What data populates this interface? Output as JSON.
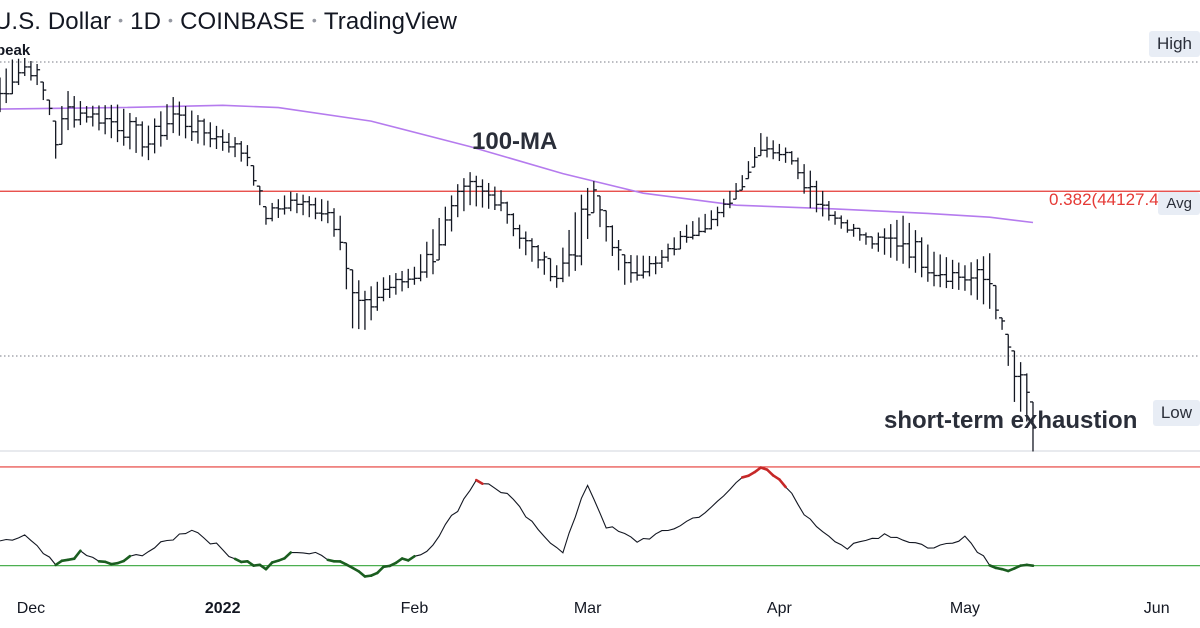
{
  "header": {
    "title_parts": [
      "U.S. Dollar",
      "1D",
      "COINBASE",
      "TradingView"
    ],
    "subtitle": "peak"
  },
  "price_tags": {
    "high": "High",
    "avg": "Avg",
    "low": "Low"
  },
  "annotations": {
    "ma": "100-MA",
    "fib": "0.382(44127.4",
    "exhaustion": "short-term exhaustion"
  },
  "colors": {
    "candle": "#131722",
    "ma_line": "#b57bee",
    "fib_line": "#e53935",
    "fib_text": "#e53935",
    "rsi_line": "#131722",
    "rsi_overbought": "#e53935",
    "rsi_oversold": "#4caf50",
    "rsi_extreme_high": "#c62828",
    "rsi_extreme_low": "#1b5e20",
    "dotted": "#787b86"
  },
  "chart_data": {
    "type": "ohlc",
    "x_axis": {
      "tick_labels": [
        "Dec",
        "2022",
        "Feb",
        "Mar",
        "Apr",
        "May",
        "Jun"
      ],
      "tick_dates": [
        "2021-12-01",
        "2022-01-01",
        "2022-02-01",
        "2022-03-01",
        "2022-04-01",
        "2022-05-01",
        "2022-06-01"
      ],
      "range": [
        "2021-11-26",
        "2022-06-08"
      ]
    },
    "y_range": [
      26500,
      53000
    ],
    "fib_level": {
      "label": "0.382(44127.4",
      "value": 44127.4
    },
    "ma_100": {
      "label": "100-MA",
      "points": [
        [
          "2021-11-26",
          49600
        ],
        [
          "2021-12-15",
          49700
        ],
        [
          "2022-01-01",
          49850
        ],
        [
          "2022-01-10",
          49700
        ],
        [
          "2022-01-25",
          48800
        ],
        [
          "2022-02-10",
          47100
        ],
        [
          "2022-02-25",
          45300
        ],
        [
          "2022-03-10",
          44000
        ],
        [
          "2022-03-25",
          43200
        ],
        [
          "2022-04-10",
          42950
        ],
        [
          "2022-04-25",
          42650
        ],
        [
          "2022-05-05",
          42400
        ],
        [
          "2022-05-12",
          42050
        ]
      ]
    },
    "ohlc_keypoints": [
      [
        "2021-11-26",
        49400,
        51700
      ],
      [
        "2021-11-28",
        50600,
        52900
      ],
      [
        "2021-11-30",
        51800,
        53000
      ],
      [
        "2021-12-02",
        51200,
        52600
      ],
      [
        "2021-12-04",
        49200,
        50200
      ],
      [
        "2021-12-05",
        46300,
        48800
      ],
      [
        "2021-12-07",
        48200,
        50800
      ],
      [
        "2021-12-10",
        48700,
        49800
      ],
      [
        "2021-12-15",
        47400,
        49900
      ],
      [
        "2021-12-20",
        46200,
        48500
      ],
      [
        "2021-12-24",
        48000,
        50400
      ],
      [
        "2021-12-28",
        47300,
        49200
      ],
      [
        "2022-01-02",
        46700,
        48000
      ],
      [
        "2022-01-05",
        45800,
        47200
      ],
      [
        "2022-01-08",
        41900,
        43100
      ],
      [
        "2022-01-12",
        42800,
        44100
      ],
      [
        "2022-01-18",
        42000,
        43500
      ],
      [
        "2022-01-20",
        40200,
        42500
      ],
      [
        "2022-01-22",
        35000,
        38900
      ],
      [
        "2022-01-24",
        34900,
        37500
      ],
      [
        "2022-01-27",
        36800,
        38400
      ],
      [
        "2022-02-01",
        37900,
        39100
      ],
      [
        "2022-02-04",
        38600,
        41600
      ],
      [
        "2022-02-08",
        42400,
        44600
      ],
      [
        "2022-02-10",
        43200,
        45400
      ],
      [
        "2022-02-15",
        42800,
        44200
      ],
      [
        "2022-02-18",
        40300,
        41900
      ],
      [
        "2022-02-24",
        37700,
        39200
      ],
      [
        "2022-02-28",
        39200,
        43900
      ],
      [
        "2022-03-02",
        42700,
        44800
      ],
      [
        "2022-03-07",
        37900,
        39900
      ],
      [
        "2022-03-12",
        38600,
        39800
      ],
      [
        "2022-03-17",
        40700,
        41900
      ],
      [
        "2022-03-22",
        41800,
        43100
      ],
      [
        "2022-03-26",
        44200,
        45200
      ],
      [
        "2022-03-29",
        46500,
        48000
      ],
      [
        "2022-04-03",
        45900,
        46800
      ],
      [
        "2022-04-06",
        43000,
        45500
      ],
      [
        "2022-04-10",
        41900,
        42800
      ],
      [
        "2022-04-16",
        40300,
        41100
      ],
      [
        "2022-04-21",
        39300,
        42500
      ],
      [
        "2022-04-26",
        37800,
        40100
      ],
      [
        "2022-05-01",
        37500,
        39200
      ],
      [
        "2022-05-05",
        36300,
        40000
      ],
      [
        "2022-05-07",
        34900,
        35700
      ],
      [
        "2022-05-09",
        30100,
        33500
      ],
      [
        "2022-05-11",
        28800,
        32000
      ],
      [
        "2022-05-12",
        26800,
        30100
      ]
    ],
    "rsi": {
      "overbought": 70,
      "oversold": 30,
      "y_range": [
        25,
        72
      ],
      "points": [
        [
          "2021-11-26",
          39
        ],
        [
          "2021-11-30",
          42
        ],
        [
          "2021-12-05",
          30
        ],
        [
          "2021-12-09",
          35
        ],
        [
          "2021-12-14",
          30
        ],
        [
          "2021-12-20",
          36
        ],
        [
          "2021-12-27",
          45
        ],
        [
          "2022-01-03",
          33
        ],
        [
          "2022-01-08",
          29
        ],
        [
          "2022-01-13",
          36
        ],
        [
          "2022-01-17",
          34
        ],
        [
          "2022-01-21",
          31
        ],
        [
          "2022-01-24",
          26
        ],
        [
          "2022-01-28",
          30
        ],
        [
          "2022-02-03",
          36
        ],
        [
          "2022-02-08",
          53
        ],
        [
          "2022-02-11",
          65
        ],
        [
          "2022-02-16",
          59
        ],
        [
          "2022-02-21",
          44
        ],
        [
          "2022-02-25",
          36
        ],
        [
          "2022-03-01",
          63
        ],
        [
          "2022-03-04",
          46
        ],
        [
          "2022-03-09",
          40
        ],
        [
          "2022-03-14",
          44
        ],
        [
          "2022-03-21",
          53
        ],
        [
          "2022-03-26",
          66
        ],
        [
          "2022-03-29",
          70
        ],
        [
          "2022-04-02",
          62
        ],
        [
          "2022-04-06",
          48
        ],
        [
          "2022-04-12",
          37
        ],
        [
          "2022-04-18",
          43
        ],
        [
          "2022-04-22",
          40
        ],
        [
          "2022-04-26",
          37
        ],
        [
          "2022-05-01",
          42
        ],
        [
          "2022-05-05",
          31
        ],
        [
          "2022-05-08",
          28
        ],
        [
          "2022-05-12",
          30
        ]
      ]
    }
  }
}
